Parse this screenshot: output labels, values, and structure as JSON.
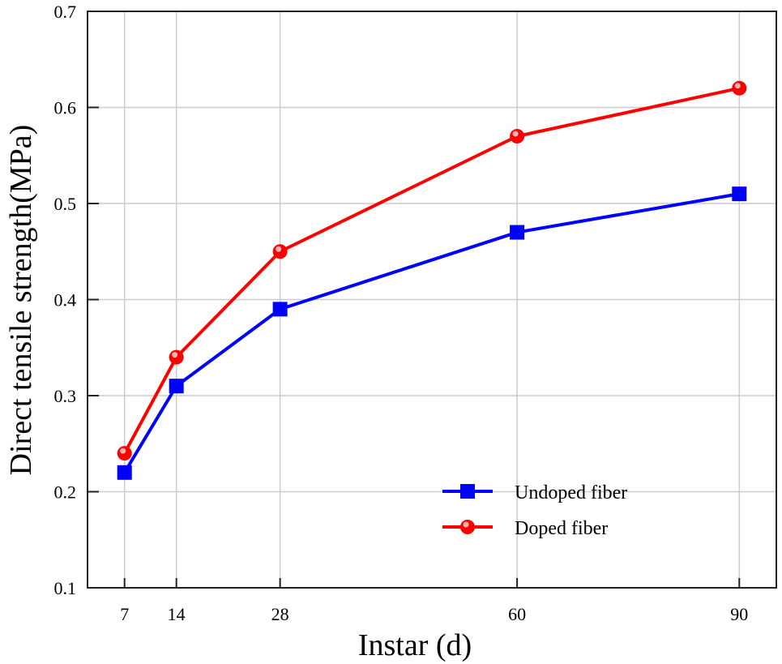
{
  "chart_data": {
    "type": "line",
    "xlabel": "Instar (d)",
    "ylabel": "Direct tensile strength(MPa)",
    "x": [
      7,
      14,
      28,
      60,
      90
    ],
    "x_ticks": [
      "7",
      "14",
      "28",
      "60",
      "90"
    ],
    "y_ticks": [
      "0.1",
      "0.2",
      "0.3",
      "0.4",
      "0.5",
      "0.6",
      "0.7"
    ],
    "xlim": [
      2,
      95
    ],
    "ylim": [
      0.1,
      0.7
    ],
    "grid": true,
    "legend_position": "bottom-right",
    "series": [
      {
        "name": "Undoped fiber",
        "values": [
          0.22,
          0.31,
          0.39,
          0.47,
          0.51
        ],
        "color": "#0000ff",
        "marker": "square"
      },
      {
        "name": "Doped  fiber",
        "values": [
          0.24,
          0.34,
          0.45,
          0.57,
          0.62
        ],
        "color": "#ff0000",
        "marker": "circle"
      }
    ]
  }
}
